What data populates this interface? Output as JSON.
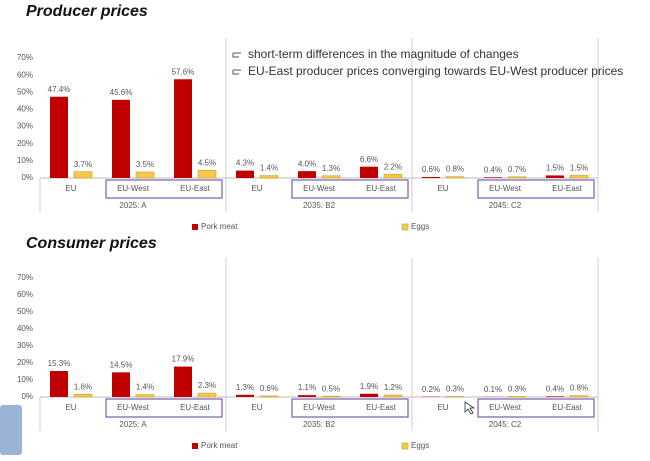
{
  "chart_data": [
    {
      "type": "bar",
      "title": "Producer prices",
      "categories": [
        "EU",
        "EU-West",
        "EU-East",
        "EU",
        "EU-West",
        "EU-East",
        "EU",
        "EU-West",
        "EU-East"
      ],
      "groups": [
        "2025: A",
        "2035: B2",
        "2045: C2"
      ],
      "series": [
        {
          "name": "Pork meat",
          "color": "#c00000",
          "values": [
            47.4,
            45.6,
            57.6,
            4.3,
            4.0,
            6.6,
            0.6,
            0.4,
            1.5
          ],
          "value_labels": [
            "47.4%",
            "45.6%",
            "57.6%",
            "4.3%",
            "4.0%",
            "6.6%",
            "0.6%",
            "0.4%",
            "1.5%"
          ]
        },
        {
          "name": "Eggs",
          "color": "#f5c84a",
          "values": [
            3.7,
            3.5,
            4.5,
            1.4,
            1.3,
            2.2,
            0.8,
            0.7,
            1.5
          ],
          "value_labels": [
            "3.7%",
            "3.5%",
            "4.5%",
            "1.4%",
            "1.3%",
            "2.2%",
            "0.8%",
            "0.7%",
            "1.5%"
          ]
        }
      ],
      "ylim": [
        0,
        70
      ],
      "yticks": [
        {
          "value": 0,
          "label": "0%"
        },
        {
          "value": 10,
          "label": "10%"
        },
        {
          "value": 20,
          "label": "20%"
        },
        {
          "value": 30,
          "label": "30%"
        },
        {
          "value": 40,
          "label": "40%"
        },
        {
          "value": 50,
          "label": "50%"
        },
        {
          "value": 60,
          "label": "60%"
        },
        {
          "value": 70,
          "label": "70%"
        }
      ],
      "annotations": [
        "short-term differences in the magnitude of changes",
        "EU-East producer prices converging towards EU-West producer prices"
      ]
    },
    {
      "type": "bar",
      "title": "Consumer prices",
      "categories": [
        "EU",
        "EU-West",
        "EU-East",
        "EU",
        "EU-West",
        "EU-East",
        "EU",
        "EU-West",
        "EU-East"
      ],
      "groups": [
        "2025: A",
        "2035: B2",
        "2045: C2"
      ],
      "series": [
        {
          "name": "Pork meat",
          "color": "#c00000",
          "values": [
            15.3,
            14.5,
            17.9,
            1.3,
            1.1,
            1.9,
            0.2,
            0.1,
            0.4
          ],
          "value_labels": [
            "15.3%",
            "14.5%",
            "17.9%",
            "1.3%",
            "1.1%",
            "1.9%",
            "0.2%",
            "0.1%",
            "0.4%"
          ]
        },
        {
          "name": "Eggs",
          "color": "#f5c84a",
          "values": [
            1.6,
            1.4,
            2.3,
            0.6,
            0.5,
            1.2,
            0.3,
            0.3,
            0.8
          ],
          "value_labels": [
            "1.6%",
            "1.4%",
            "2.3%",
            "0.6%",
            "0.5%",
            "1.2%",
            "0.3%",
            "0.3%",
            "0.8%"
          ]
        }
      ],
      "ylim": [
        0,
        70
      ],
      "yticks": [
        {
          "value": 0,
          "label": "0%"
        },
        {
          "value": 10,
          "label": "10%"
        },
        {
          "value": 20,
          "label": "20%"
        },
        {
          "value": 30,
          "label": "30%"
        },
        {
          "value": 40,
          "label": "40%"
        },
        {
          "value": 50,
          "label": "50%"
        },
        {
          "value": 60,
          "label": "60%"
        },
        {
          "value": 70,
          "label": "70%"
        }
      ]
    }
  ]
}
